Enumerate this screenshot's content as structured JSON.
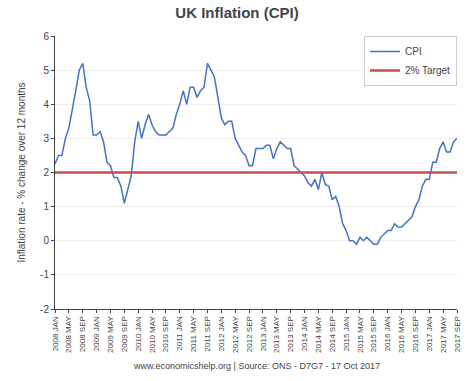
{
  "chart_data": {
    "type": "line",
    "title": "UK Inflation (CPI)",
    "ylabel": "Inflation rate - % change over 12 months",
    "footer": "www.economicshelp.org | Source: ONS - D7G7 - 17 Oct 2017",
    "categories": [
      "2008 JAN",
      null,
      null,
      null,
      "2008 MAY",
      null,
      null,
      null,
      "2008 SEP",
      null,
      null,
      null,
      "2009 JAN",
      null,
      null,
      null,
      "2009 MAY",
      null,
      null,
      null,
      "2009 SEP",
      null,
      null,
      null,
      "2010 JAN",
      null,
      null,
      null,
      "2010 MAY",
      null,
      null,
      null,
      "2010 SEP",
      null,
      null,
      null,
      "2011 JAN",
      null,
      null,
      null,
      "2011 MAY",
      null,
      null,
      null,
      "2011 SEP",
      null,
      null,
      null,
      "2012 JAN",
      null,
      null,
      null,
      "2012 MAY",
      null,
      null,
      null,
      "2012 SEP",
      null,
      null,
      null,
      "2013 JAN",
      null,
      null,
      null,
      "2013 MAY",
      null,
      null,
      null,
      "2013 SEP",
      null,
      null,
      null,
      "2014 JAN",
      null,
      null,
      null,
      "2014 MAY",
      null,
      null,
      null,
      "2014 SEP",
      null,
      null,
      null,
      "2015 JAN",
      null,
      null,
      null,
      "2015 MAY",
      null,
      null,
      null,
      "2015 SEP",
      null,
      null,
      null,
      "2016 JAN",
      null,
      null,
      null,
      "2016 MAY",
      null,
      null,
      null,
      "2016 SEP",
      null,
      null,
      null,
      "2017 JAN",
      null,
      null,
      null,
      "2017 MAY",
      null,
      null,
      null,
      "2017 SEP"
    ],
    "series": [
      {
        "name": "CPI",
        "color": "#4472C4",
        "values": [
          2.25,
          2.5,
          2.5,
          3.0,
          3.3,
          3.8,
          4.4,
          5.0,
          5.2,
          4.5,
          4.1,
          3.1,
          3.1,
          3.2,
          2.9,
          2.3,
          2.2,
          1.85,
          1.85,
          1.6,
          1.1,
          1.5,
          1.9,
          2.9,
          3.5,
          3.0,
          3.4,
          3.7,
          3.4,
          3.2,
          3.1,
          3.1,
          3.1,
          3.2,
          3.3,
          3.7,
          4.0,
          4.4,
          4.0,
          4.5,
          4.5,
          4.2,
          4.4,
          4.5,
          5.2,
          5.0,
          4.8,
          4.2,
          3.6,
          3.4,
          3.5,
          3.5,
          3.0,
          2.8,
          2.6,
          2.5,
          2.2,
          2.2,
          2.7,
          2.7,
          2.7,
          2.8,
          2.8,
          2.4,
          2.7,
          2.9,
          2.8,
          2.7,
          2.7,
          2.2,
          2.1,
          2.0,
          1.9,
          1.7,
          1.6,
          1.8,
          1.5,
          2.0,
          1.65,
          1.6,
          1.2,
          1.3,
          1.0,
          0.5,
          0.3,
          0.0,
          0.0,
          -0.1,
          0.1,
          0.0,
          0.1,
          0.0,
          -0.1,
          -0.1,
          0.1,
          0.2,
          0.3,
          0.3,
          0.5,
          0.4,
          0.4,
          0.5,
          0.6,
          0.7,
          1.0,
          1.2,
          1.6,
          1.8,
          1.8,
          2.3,
          2.3,
          2.7,
          2.9,
          2.6,
          2.6,
          2.9,
          3.0
        ]
      }
    ],
    "reference_lines": [
      {
        "name": "2% Target",
        "value": 2.0,
        "color": "#C0504D"
      }
    ],
    "ylim": [
      -2,
      6
    ],
    "yticks": [
      -2,
      -1,
      0,
      1,
      2,
      3,
      4,
      5,
      6
    ],
    "grid": "y",
    "legend": "upper right"
  }
}
